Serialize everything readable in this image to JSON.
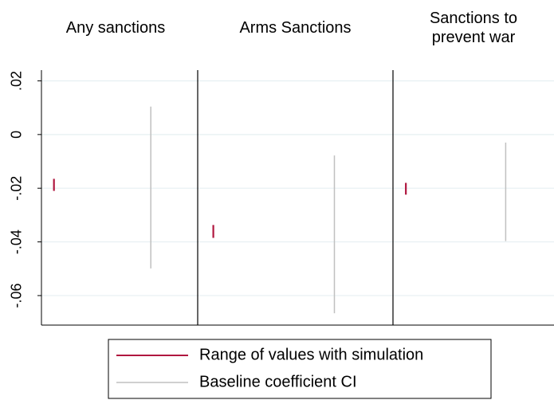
{
  "chart_data": {
    "type": "range",
    "categories": [
      "Any sanctions",
      "Arms Sanctions",
      "Sanctions to prevent war"
    ],
    "series": [
      {
        "name": "Range of values with simulation",
        "color": "#b0173f",
        "values": [
          [
            -0.0165,
            -0.021
          ],
          [
            -0.0337,
            -0.0385
          ],
          [
            -0.018,
            -0.0224
          ]
        ]
      },
      {
        "name": "Baseline coefficient CI",
        "color": "#c0c0c0",
        "values": [
          [
            0.0104,
            -0.0499
          ],
          [
            -0.0078,
            -0.0666
          ],
          [
            -0.003,
            -0.0397
          ]
        ]
      }
    ],
    "ylim": [
      -0.071,
      0.024
    ],
    "yticks": [
      {
        "value": 0.02,
        "label": ".02"
      },
      0,
      {
        "value": -0.02,
        "label": "-.02"
      },
      {
        "value": -0.04,
        "label": "-.04"
      },
      {
        "value": -0.06,
        "label": "-.06"
      }
    ],
    "grid": true
  }
}
